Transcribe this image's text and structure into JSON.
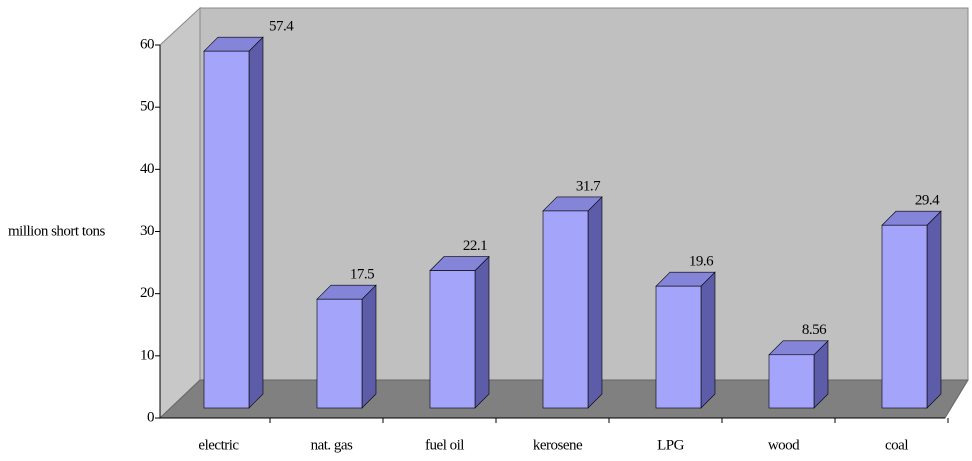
{
  "chart_data": {
    "type": "bar3d",
    "y_label": "million short tons",
    "categories": [
      "electric",
      "nat. gas",
      "fuel oil",
      "kerosene",
      "LPG",
      "wood",
      "coal"
    ],
    "values": [
      57.4,
      17.5,
      22.1,
      31.7,
      19.6,
      8.56,
      29.4
    ],
    "color": "#a4a4fa",
    "ylim": [
      0,
      60
    ],
    "yticks": [
      0,
      10,
      20,
      30,
      40,
      50,
      60
    ]
  }
}
